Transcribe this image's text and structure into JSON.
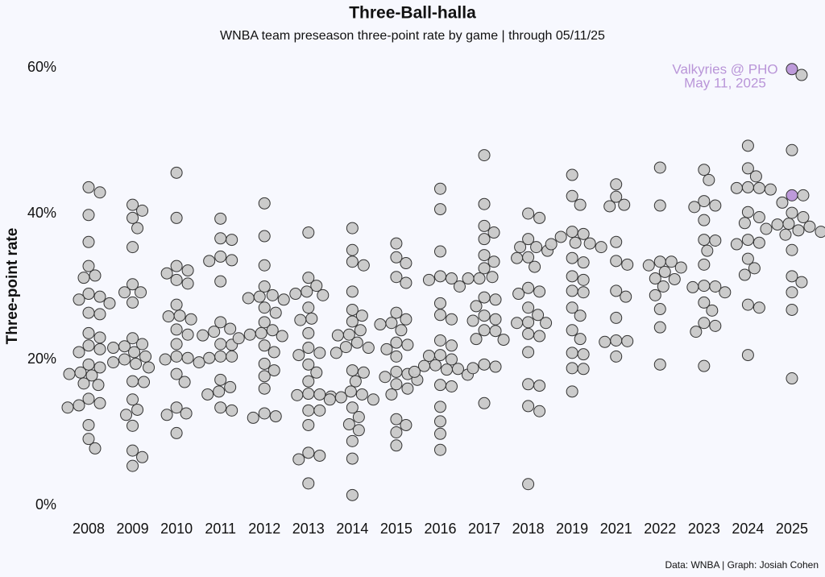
{
  "chart_data": {
    "type": "beeswarm",
    "title": "Three-Ball-halla",
    "subtitle": "WNBA team preseason three-point rate by game | through 05/11/25",
    "y_label": "Three-point rate",
    "caption": "Data: WNBA | Graph: Josiah Cohen",
    "annotation": {
      "lines": [
        "Valkyries @ PHO",
        "May 11, 2025"
      ],
      "category_index": 16,
      "point_index": 0
    },
    "ylim": [
      0,
      60
    ],
    "yticks": [
      {
        "value": 0,
        "label": "0%"
      },
      {
        "value": 20,
        "label": "20%"
      },
      {
        "value": 40,
        "label": "40%"
      },
      {
        "value": 60,
        "label": "60%"
      }
    ],
    "color": "#c8c8c8",
    "highlight": {
      "color": "#b995d8",
      "points": [
        [
          16,
          0
        ],
        [
          16,
          3
        ]
      ]
    },
    "categories": [
      "2008",
      "2009",
      "2010",
      "2011",
      "2012",
      "2013",
      "2014",
      "2015",
      "2016",
      "2017",
      "2018",
      "2019",
      "2021",
      "2022",
      "2023",
      "2024",
      "2025"
    ],
    "values": [
      [
        43.6,
        42.9,
        39.8,
        36.1,
        32.8,
        31.5,
        31.2,
        29.0,
        28.6,
        28.2,
        27.7,
        26.4,
        26.2,
        23.6,
        23.0,
        21.9,
        21.4,
        21.0,
        19.3,
        18.9,
        18.2,
        18.0,
        17.8,
        16.7,
        16.5,
        14.6,
        14.0,
        13.7,
        13.4,
        11.0,
        9.1,
        7.8
      ],
      [
        41.2,
        40.4,
        39.4,
        38.0,
        35.4,
        30.3,
        29.2,
        29.2,
        27.8,
        22.9,
        22.1,
        21.8,
        21.6,
        21.0,
        20.4,
        20.0,
        19.6,
        19.4,
        18.9,
        17.0,
        16.9,
        14.5,
        13.1,
        12.4,
        10.9,
        7.5,
        6.6,
        5.4
      ],
      [
        45.6,
        39.4,
        32.8,
        32.2,
        31.8,
        30.9,
        30.4,
        27.5,
        26.0,
        25.9,
        25.5,
        24.1,
        23.4,
        22.1,
        20.4,
        20.2,
        20.0,
        19.6,
        18.0,
        16.9,
        13.4,
        12.6,
        12.4,
        9.9
      ],
      [
        39.3,
        36.6,
        36.4,
        34.1,
        33.6,
        33.5,
        30.7,
        25.1,
        24.2,
        23.8,
        23.3,
        22.1,
        22.0,
        20.4,
        20.4,
        20.2,
        17.2,
        16.2,
        15.6,
        15.2,
        13.4,
        13.0
      ],
      [
        41.4,
        36.9,
        32.9,
        30.0,
        28.8,
        28.6,
        28.4,
        28.2,
        27.1,
        26.4,
        25.1,
        24.0,
        23.6,
        23.4,
        23.2,
        22.9,
        21.9,
        21.0,
        19.4,
        18.5,
        17.7,
        16.0,
        12.6,
        12.2,
        12.0
      ],
      [
        37.4,
        31.2,
        30.1,
        29.3,
        29.0,
        28.8,
        27.1,
        25.6,
        25.4,
        23.6,
        21.6,
        20.9,
        20.6,
        19.3,
        18.2,
        17.0,
        15.3,
        15.2,
        15.1,
        14.9,
        13.0,
        13.0,
        11.0,
        7.2,
        6.8,
        6.3,
        3.0
      ],
      [
        38.0,
        35.0,
        33.4,
        32.9,
        29.3,
        26.8,
        26.0,
        25.2,
        24.0,
        23.4,
        23.3,
        22.3,
        21.7,
        21.6,
        20.9,
        18.5,
        18.2,
        17.0,
        15.6,
        15.2,
        14.8,
        14.5,
        14.5,
        13.4,
        12.1,
        11.1,
        10.3,
        8.8,
        6.4,
        1.4
      ],
      [
        35.9,
        34.0,
        33.2,
        31.3,
        30.5,
        26.4,
        25.5,
        25.0,
        24.8,
        24.0,
        22.3,
        22.0,
        21.4,
        20.4,
        18.3,
        18.0,
        17.6,
        17.2,
        16.6,
        16.0,
        15.2,
        11.8,
        11.0,
        10.0,
        8.2
      ],
      [
        43.4,
        40.6,
        34.8,
        31.4,
        31.1,
        30.9,
        30.0,
        27.7,
        26.1,
        25.5,
        22.6,
        21.9,
        20.6,
        20.5,
        20.0,
        19.2,
        19.1,
        18.7,
        18.6,
        18.3,
        17.9,
        16.5,
        16.3,
        13.5,
        11.5,
        9.8,
        7.6
      ],
      [
        48.0,
        41.3,
        38.3,
        37.4,
        36.5,
        34.3,
        33.4,
        32.5,
        31.3,
        31.1,
        31.1,
        28.5,
        28.2,
        27.3,
        26.0,
        25.5,
        25.3,
        24.0,
        23.9,
        22.8,
        22.7,
        19.3,
        19.0,
        18.8,
        14.0
      ],
      [
        40.0,
        39.4,
        36.5,
        35.4,
        35.4,
        34.9,
        34.0,
        33.9,
        32.7,
        29.8,
        29.3,
        29.0,
        27.1,
        26.1,
        25.1,
        25.0,
        25.0,
        23.5,
        23.2,
        21.0,
        16.6,
        16.4,
        13.6,
        12.9,
        2.9
      ],
      [
        45.3,
        42.4,
        41.2,
        37.5,
        37.2,
        36.8,
        36.0,
        35.9,
        35.8,
        35.4,
        33.9,
        33.3,
        31.4,
        30.9,
        29.4,
        29.2,
        27.1,
        26.0,
        24.0,
        22.8,
        20.9,
        20.7,
        18.8,
        18.7,
        15.6
      ],
      [
        44.0,
        42.3,
        41.2,
        41.0,
        36.1,
        33.5,
        33.0,
        29.4,
        28.6,
        25.7,
        22.6,
        22.5,
        22.4,
        20.4
      ],
      [
        46.3,
        41.1,
        33.4,
        33.4,
        32.9,
        32.6,
        32.0,
        31.1,
        31.0,
        30.0,
        28.8,
        26.9,
        24.4,
        19.3
      ],
      [
        46.0,
        44.6,
        41.7,
        41.1,
        40.9,
        39.1,
        36.4,
        36.3,
        34.9,
        33.0,
        30.1,
        30.0,
        29.9,
        29.2,
        27.8,
        26.7,
        25.0,
        24.6,
        23.8,
        19.1
      ],
      [
        49.3,
        46.2,
        45.1,
        43.6,
        43.5,
        43.5,
        43.3,
        40.2,
        39.5,
        38.7,
        36.4,
        36.0,
        35.8,
        33.8,
        32.5,
        31.6,
        27.5,
        27.1,
        20.6
      ],
      [
        59.8,
        59.0,
        48.7,
        42.5,
        42.5,
        41.5,
        40.1,
        39.5,
        38.6,
        38.5,
        38.2,
        37.9,
        37.7,
        37.5,
        37.1,
        35.0,
        31.4,
        30.6,
        29.2,
        26.8,
        17.4
      ]
    ]
  }
}
